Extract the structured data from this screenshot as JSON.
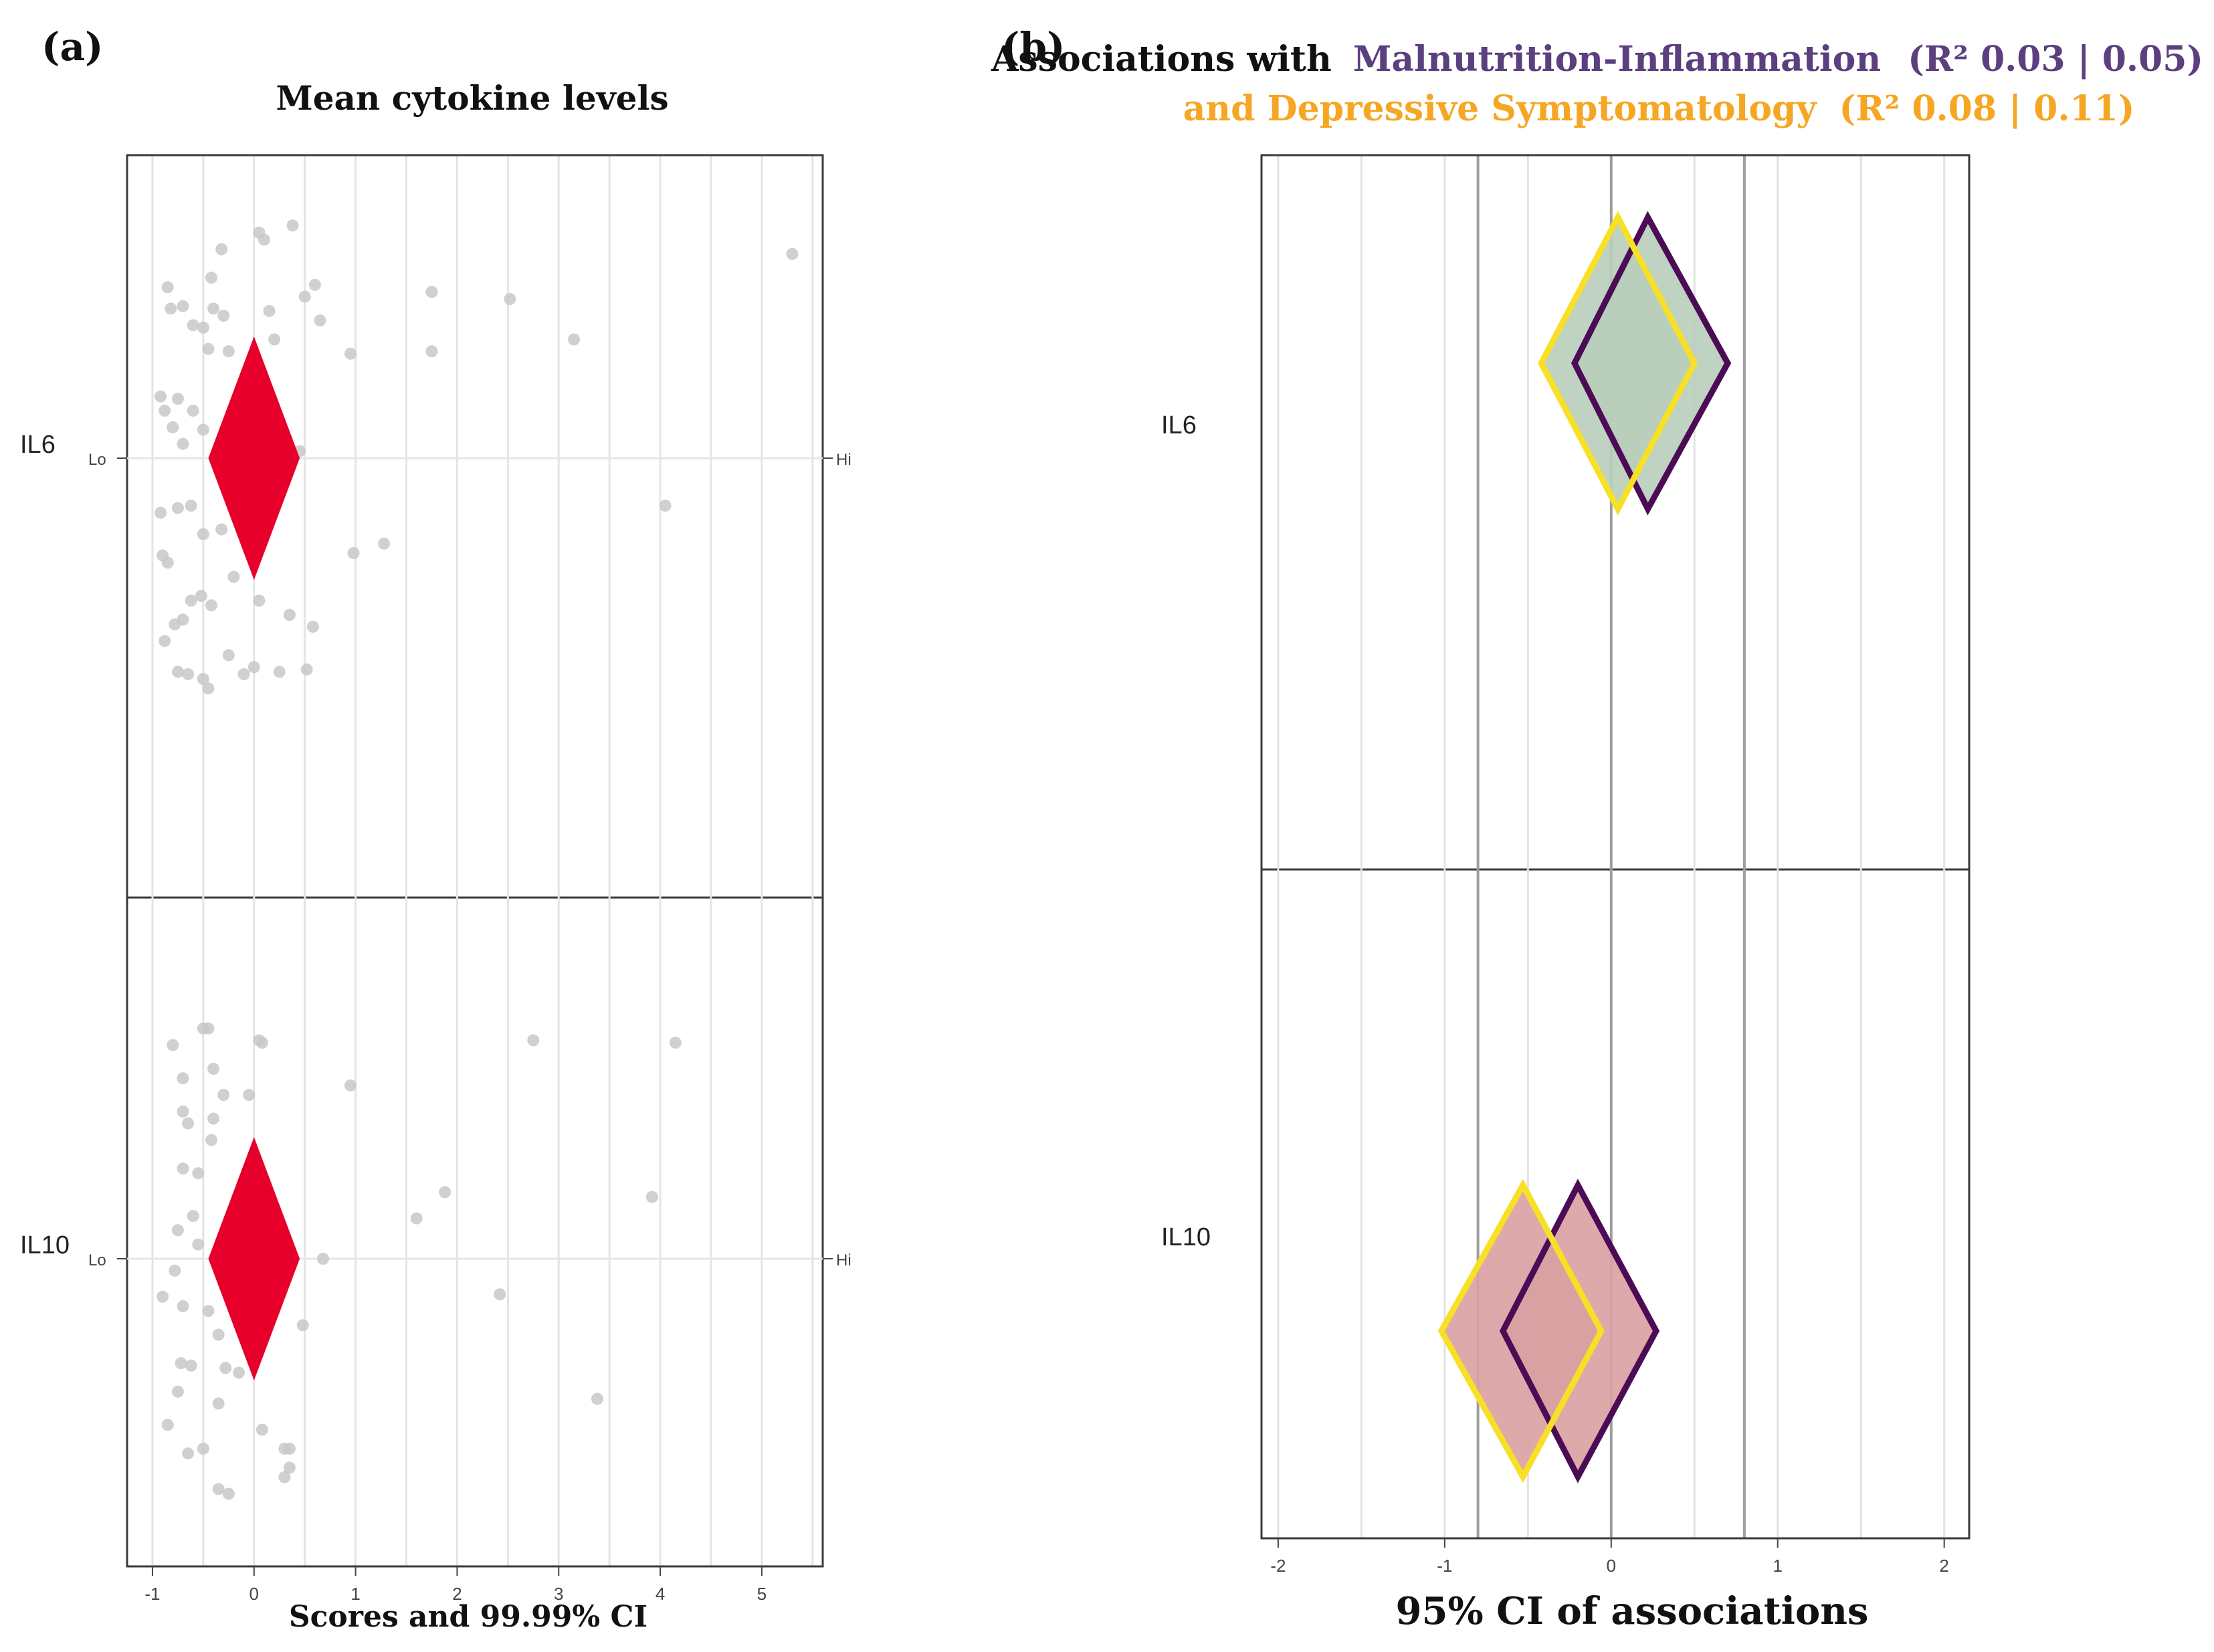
{
  "chart_data": [
    {
      "panel_label": "(a)",
      "type": "scatter",
      "title": "Mean cytokine levels",
      "xlabel": "Scores and 99.99% CI",
      "xlim": [
        -1.25,
        5.6
      ],
      "xticks": [
        "-1",
        "0",
        "1",
        "2",
        "3",
        "4",
        "5"
      ],
      "tick_values": [
        -1,
        0,
        1,
        2,
        3,
        4,
        5
      ],
      "categories": [
        "IL6",
        "IL10"
      ],
      "low_label": "Lo",
      "high_label": "Hi",
      "diamond_color": "#e8002d",
      "point_color": "#c8c8c8",
      "estimates": [
        {
          "name": "IL6",
          "mean": 0.0,
          "ci_low": -0.45,
          "ci_high": 0.45
        },
        {
          "name": "IL10",
          "mean": 0.0,
          "ci_low": -0.45,
          "ci_high": 0.45
        }
      ],
      "points": {
        "IL6": [
          [
            0.05,
            0.95
          ],
          [
            0.38,
            0.98
          ],
          [
            0.1,
            0.92
          ],
          [
            -0.32,
            0.88
          ],
          [
            -0.42,
            0.76
          ],
          [
            0.6,
            0.73
          ],
          [
            -0.85,
            0.72
          ],
          [
            0.5,
            0.68
          ],
          [
            1.75,
            0.7
          ],
          [
            2.52,
            0.67
          ],
          [
            5.3,
            0.86
          ],
          [
            -0.7,
            0.64
          ],
          [
            -0.82,
            0.63
          ],
          [
            -0.4,
            0.63
          ],
          [
            -0.3,
            0.6
          ],
          [
            0.15,
            0.62
          ],
          [
            0.65,
            0.58
          ],
          [
            -0.6,
            0.56
          ],
          [
            -0.5,
            0.55
          ],
          [
            0.2,
            0.5
          ],
          [
            -0.25,
            0.45
          ],
          [
            -0.45,
            0.46
          ],
          [
            0.95,
            0.44
          ],
          [
            1.75,
            0.45
          ],
          [
            3.15,
            0.5
          ],
          [
            -0.92,
            0.26
          ],
          [
            -0.75,
            0.25
          ],
          [
            -0.88,
            0.2
          ],
          [
            -0.6,
            0.2
          ],
          [
            -0.8,
            0.13
          ],
          [
            -0.5,
            0.12
          ],
          [
            -0.7,
            0.06
          ],
          [
            0.3,
            0.08
          ],
          [
            0.45,
            0.03
          ],
          [
            -0.75,
            -0.21
          ],
          [
            -0.92,
            -0.23
          ],
          [
            -0.62,
            -0.2
          ],
          [
            -0.2,
            -0.2
          ],
          [
            -0.5,
            -0.32
          ],
          [
            -0.32,
            -0.3
          ],
          [
            -0.9,
            -0.41
          ],
          [
            -0.85,
            -0.44
          ],
          [
            1.28,
            -0.36
          ],
          [
            0.98,
            -0.4
          ],
          [
            4.05,
            -0.2
          ],
          [
            -0.2,
            -0.5
          ],
          [
            -0.52,
            -0.58
          ],
          [
            -0.62,
            -0.6
          ],
          [
            -0.78,
            -0.7
          ],
          [
            -0.7,
            -0.68
          ],
          [
            -0.42,
            -0.62
          ],
          [
            0.05,
            -0.6
          ],
          [
            0.35,
            -0.66
          ],
          [
            0.58,
            -0.71
          ],
          [
            -0.88,
            -0.77
          ],
          [
            -0.25,
            -0.83
          ],
          [
            0.0,
            -0.88
          ],
          [
            0.25,
            -0.9
          ],
          [
            -0.75,
            -0.9
          ],
          [
            -0.65,
            -0.91
          ],
          [
            -0.5,
            -0.93
          ],
          [
            -0.45,
            -0.97
          ],
          [
            0.52,
            -0.89
          ],
          [
            -0.1,
            -0.91
          ]
        ],
        "IL10": [
          [
            -0.5,
            0.97
          ],
          [
            -0.45,
            0.97
          ],
          [
            0.05,
            0.92
          ],
          [
            0.08,
            0.91
          ],
          [
            -0.8,
            0.9
          ],
          [
            2.75,
            0.92
          ],
          [
            4.15,
            0.91
          ],
          [
            -0.4,
            0.8
          ],
          [
            -0.7,
            0.76
          ],
          [
            -0.3,
            0.69
          ],
          [
            -0.05,
            0.69
          ],
          [
            0.95,
            0.73
          ],
          [
            -0.7,
            0.62
          ],
          [
            -0.65,
            0.57
          ],
          [
            -0.4,
            0.59
          ],
          [
            -0.42,
            0.5
          ],
          [
            -0.7,
            0.38
          ],
          [
            -0.55,
            0.36
          ],
          [
            1.88,
            0.28
          ],
          [
            3.92,
            0.26
          ],
          [
            1.6,
            0.17
          ],
          [
            -0.6,
            0.18
          ],
          [
            -0.75,
            0.12
          ],
          [
            -0.55,
            0.06
          ],
          [
            0.68,
            0.0
          ],
          [
            -0.78,
            -0.05
          ],
          [
            -0.9,
            -0.16
          ],
          [
            -0.7,
            -0.2
          ],
          [
            -0.45,
            -0.22
          ],
          [
            2.42,
            -0.15
          ],
          [
            0.48,
            -0.28
          ],
          [
            -0.35,
            -0.32
          ],
          [
            -0.72,
            -0.44
          ],
          [
            -0.62,
            -0.45
          ],
          [
            -0.28,
            -0.46
          ],
          [
            -0.15,
            -0.48
          ],
          [
            -0.75,
            -0.56
          ],
          [
            3.38,
            -0.59
          ],
          [
            -0.35,
            -0.61
          ],
          [
            -0.85,
            -0.7
          ],
          [
            0.08,
            -0.72
          ],
          [
            0.35,
            -0.8
          ],
          [
            0.3,
            -0.8
          ],
          [
            -0.5,
            -0.8
          ],
          [
            -0.65,
            -0.82
          ],
          [
            0.35,
            -0.88
          ],
          [
            0.3,
            -0.92
          ],
          [
            -0.35,
            -0.97
          ],
          [
            -0.25,
            -0.99
          ]
        ]
      }
    },
    {
      "panel_label": "(b)",
      "type": "forest",
      "title_prefix": "Associations with",
      "series": [
        {
          "name": "Malnutrition-Inflammation",
          "r2": "(R² 0.03 | 0.05)",
          "color": "#5b3f7f",
          "outline": "#4b0b55",
          "IL6": {
            "estimate": 0.22,
            "ci_low": -0.22,
            "ci_high": 0.7
          },
          "IL10": {
            "estimate": -0.2,
            "ci_low": -0.65,
            "ci_high": 0.27
          }
        },
        {
          "name": "and Depressive Symptomatology",
          "r2": "(R² 0.08 | 0.11)",
          "color": "#f5a623",
          "outline": "#f7e025",
          "IL6": {
            "estimate": 0.04,
            "ci_low": -0.42,
            "ci_high": 0.5
          },
          "IL10": {
            "estimate": -0.53,
            "ci_low": -1.02,
            "ci_high": -0.06
          }
        }
      ],
      "categories": [
        "IL6",
        "IL10"
      ],
      "xlabel": "95% CI of associations",
      "xlim": [
        -2.1,
        2.15
      ],
      "xticks": [
        "-2",
        "-1",
        "0",
        "1",
        "2"
      ],
      "tick_values": [
        -2,
        -1,
        0,
        1,
        2
      ],
      "reference_lines": [
        -0.8,
        0,
        0.8
      ],
      "fills": {
        "IL6": "#b9cdbb",
        "IL10": "#d9a0a2"
      }
    }
  ]
}
